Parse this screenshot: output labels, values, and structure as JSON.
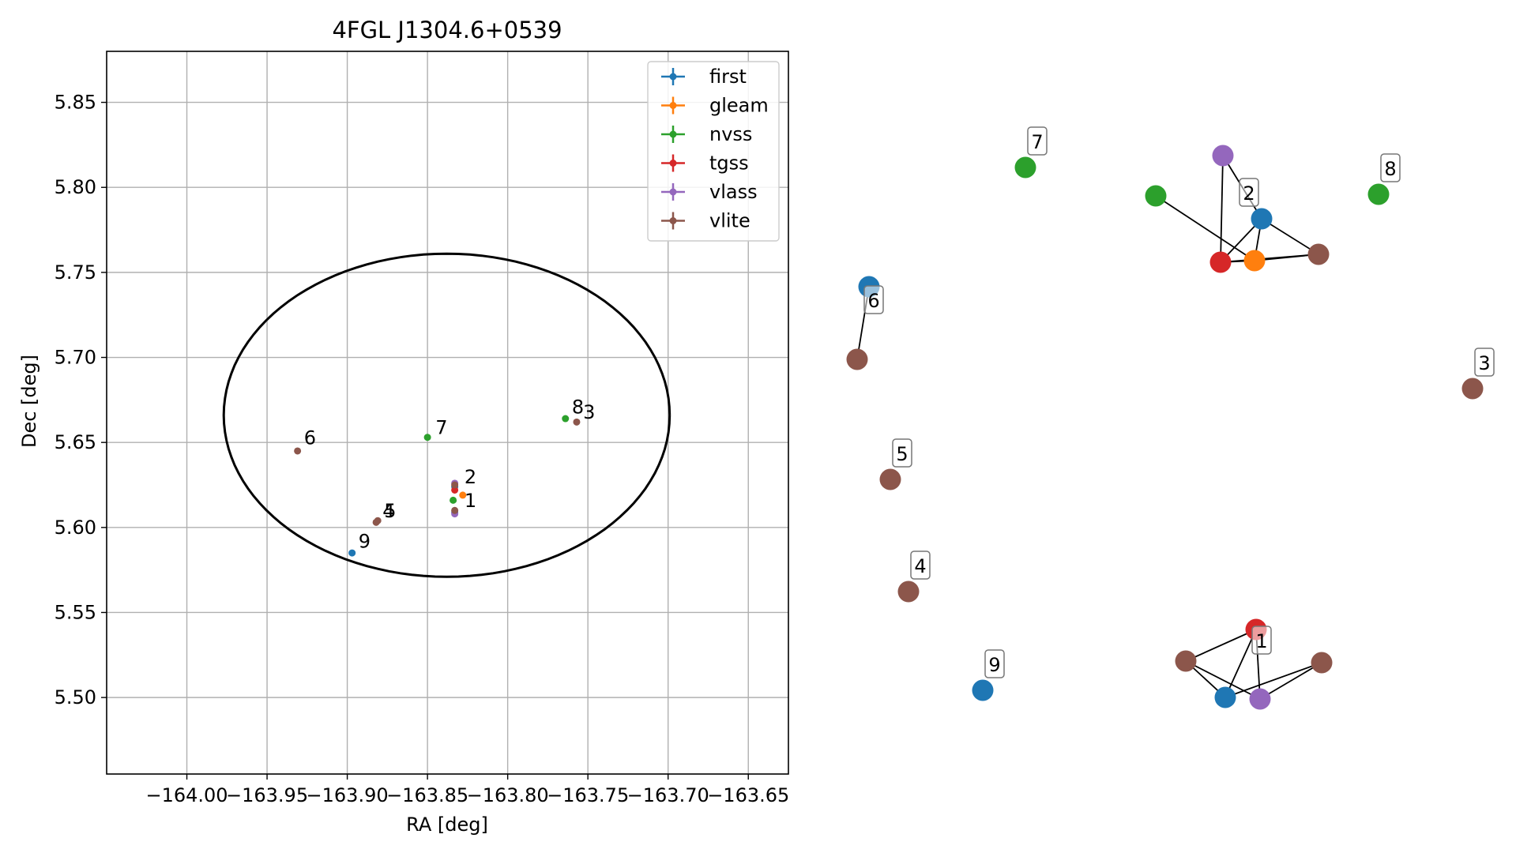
{
  "chart_data": [
    {
      "type": "scatter",
      "title": "4FGL J1304.6+0539",
      "xlabel": "RA [deg]",
      "ylabel": "Dec [deg]",
      "xlim": [
        -164.05,
        -163.625
      ],
      "ylim": [
        5.455,
        5.88
      ],
      "xticks": [
        -164.0,
        -163.95,
        -163.9,
        -163.85,
        -163.8,
        -163.75,
        -163.7,
        -163.65
      ],
      "xtick_labels": [
        "−164.00",
        "−163.95",
        "−163.90",
        "−163.85",
        "−163.80",
        "−163.75",
        "−163.70",
        "−163.65"
      ],
      "yticks": [
        5.5,
        5.55,
        5.6,
        5.65,
        5.7,
        5.75,
        5.8,
        5.85
      ],
      "ytick_labels": [
        "5.50",
        "5.55",
        "5.60",
        "5.65",
        "5.70",
        "5.75",
        "5.80",
        "5.85"
      ],
      "grid": true,
      "legend_position": "top-right",
      "ellipse": {
        "center": [
          -163.838,
          5.666
        ],
        "ra_radius": 0.139,
        "dec_radius": 0.095
      },
      "series": [
        {
          "name": "first",
          "color": "#1f77b4",
          "points": [
            [
              -163.833,
              5.609
            ],
            [
              -163.833,
              5.624
            ],
            [
              -163.897,
              5.585
            ]
          ]
        },
        {
          "name": "gleam",
          "color": "#ff7f0e",
          "points": [
            [
              -163.828,
              5.619
            ]
          ]
        },
        {
          "name": "nvss",
          "color": "#2ca02c",
          "points": [
            [
              -163.834,
              5.616
            ],
            [
              -163.85,
              5.653
            ],
            [
              -163.764,
              5.664
            ]
          ]
        },
        {
          "name": "tgss",
          "color": "#d62728",
          "points": [
            [
              -163.833,
              5.622
            ]
          ]
        },
        {
          "name": "vlass",
          "color": "#9467bd",
          "points": [
            [
              -163.833,
              5.608
            ],
            [
              -163.833,
              5.626
            ]
          ]
        },
        {
          "name": "vlite",
          "color": "#8c564b",
          "points": [
            [
              -163.833,
              5.61
            ],
            [
              -163.833,
              5.625
            ],
            [
              -163.757,
              5.662
            ],
            [
              -163.882,
              5.603
            ],
            [
              -163.881,
              5.604
            ],
            [
              -163.931,
              5.645
            ]
          ]
        }
      ],
      "annotations": [
        {
          "text": "1",
          "x": -163.827,
          "y": 5.612
        },
        {
          "text": "2",
          "x": -163.827,
          "y": 5.626
        },
        {
          "text": "3",
          "x": -163.753,
          "y": 5.664
        },
        {
          "text": "4",
          "x": -163.878,
          "y": 5.606
        },
        {
          "text": "5",
          "x": -163.877,
          "y": 5.606
        },
        {
          "text": "6",
          "x": -163.927,
          "y": 5.649
        },
        {
          "text": "7",
          "x": -163.845,
          "y": 5.655
        },
        {
          "text": "8",
          "x": -163.76,
          "y": 5.667
        },
        {
          "text": "9",
          "x": -163.893,
          "y": 5.588
        }
      ]
    },
    {
      "type": "network",
      "groups": [
        {
          "label": "1",
          "nodes": [
            {
              "source": "tgss",
              "color": "#d62728"
            },
            {
              "source": "vlite",
              "color": "#8c564b"
            },
            {
              "source": "vlite",
              "color": "#8c564b"
            },
            {
              "source": "first",
              "color": "#1f77b4"
            },
            {
              "source": "vlass",
              "color": "#9467bd"
            }
          ],
          "edges": [
            [
              0,
              1
            ],
            [
              0,
              3
            ],
            [
              0,
              4
            ],
            [
              1,
              3
            ],
            [
              1,
              4
            ],
            [
              2,
              3
            ],
            [
              2,
              4
            ]
          ]
        },
        {
          "label": "2",
          "nodes": [
            {
              "source": "vlass",
              "color": "#9467bd"
            },
            {
              "source": "nvss",
              "color": "#2ca02c"
            },
            {
              "source": "first",
              "color": "#1f77b4"
            },
            {
              "source": "tgss",
              "color": "#d62728"
            },
            {
              "source": "gleam",
              "color": "#ff7f0e"
            },
            {
              "source": "vlite",
              "color": "#8c564b"
            }
          ],
          "edges": [
            [
              0,
              3
            ],
            [
              0,
              2
            ],
            [
              1,
              4
            ],
            [
              2,
              3
            ],
            [
              2,
              4
            ],
            [
              2,
              5
            ],
            [
              3,
              4
            ],
            [
              3,
              5
            ],
            [
              4,
              5
            ]
          ]
        },
        {
          "label": "3",
          "nodes": [
            {
              "source": "vlite",
              "color": "#8c564b"
            }
          ],
          "edges": []
        },
        {
          "label": "4",
          "nodes": [
            {
              "source": "vlite",
              "color": "#8c564b"
            }
          ],
          "edges": []
        },
        {
          "label": "5",
          "nodes": [
            {
              "source": "vlite",
              "color": "#8c564b"
            }
          ],
          "edges": []
        },
        {
          "label": "6",
          "nodes": [
            {
              "source": "first",
              "color": "#1f77b4"
            },
            {
              "source": "vlite",
              "color": "#8c564b"
            }
          ],
          "edges": [
            [
              0,
              1
            ]
          ]
        },
        {
          "label": "7",
          "nodes": [
            {
              "source": "nvss",
              "color": "#2ca02c"
            }
          ],
          "edges": []
        },
        {
          "label": "8",
          "nodes": [
            {
              "source": "nvss",
              "color": "#2ca02c"
            }
          ],
          "edges": []
        },
        {
          "label": "9",
          "nodes": [
            {
              "source": "first",
              "color": "#1f77b4"
            }
          ],
          "edges": []
        }
      ]
    }
  ]
}
